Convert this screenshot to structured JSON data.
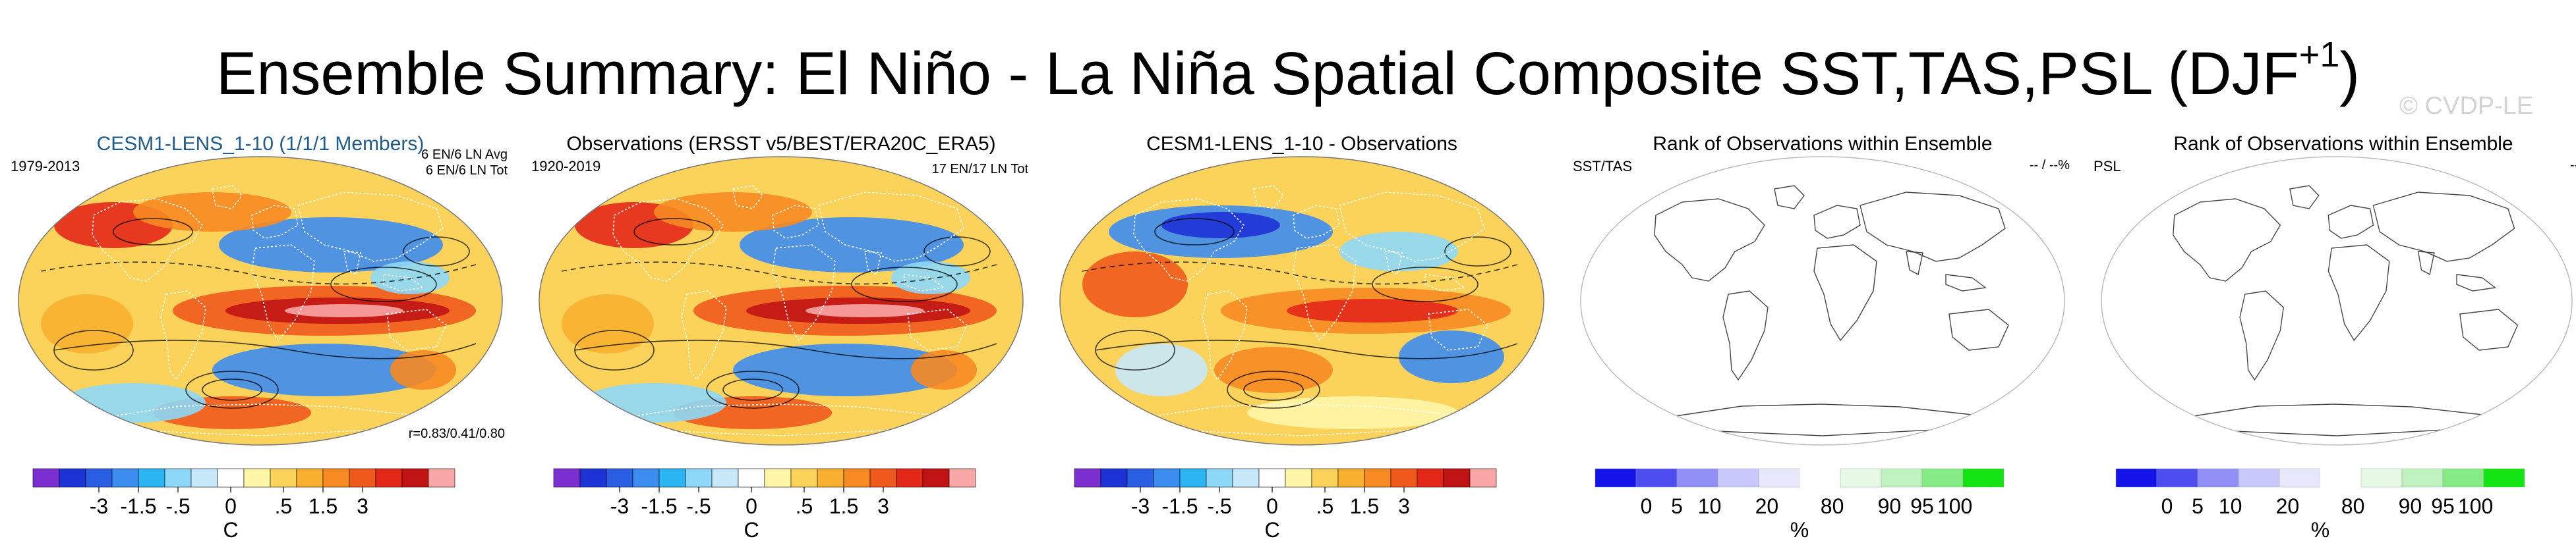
{
  "title_main": "Ensemble Summary: El Niño - La Niña Spatial Composite SST,TAS,PSL (DJF",
  "title_sup": "+1",
  "title_close": ")",
  "watermark": "© CVDP-LE",
  "colors": {
    "diverging": [
      "#7b2fd0",
      "#1e33d6",
      "#2a5fe3",
      "#3d8cf0",
      "#2bb5f2",
      "#8dd8f8",
      "#c6e8f9",
      "#ffffff",
      "#fff6a8",
      "#fbd25a",
      "#f9b030",
      "#f78a22",
      "#ef5a1c",
      "#e3281a",
      "#c01414",
      "#f9a6a6"
    ],
    "rank": [
      "#1414e8",
      "#4d4df0",
      "#8f8ff5",
      "#c8c8fa",
      "#e8e8fd",
      "#ffffff",
      "#e5f9e5",
      "#bff2bf",
      "#86eb86",
      "#14e314"
    ],
    "coast": "#555555",
    "title_blue": "#1f5c8c"
  },
  "panels": [
    {
      "title": "CESM1-LENS_1-10 (1/1/1 Members)",
      "top_left": "1979-2013",
      "top_right_1": "6 EN/6 LN Avg",
      "top_right_2": "6 EN/6 LN Tot",
      "bottom_right": "r=0.83/0.41/0.80",
      "unit": "C"
    },
    {
      "title": "Observations (ERSST v5/BEST/ERA20C_ERA5)",
      "top_left": "1920-2019",
      "top_right_1": "17 EN/17 LN Tot",
      "unit": "C"
    },
    {
      "title": "CESM1-LENS_1-10 - Observations",
      "unit": "C"
    },
    {
      "title": "Rank of Observations within Ensemble",
      "top_left": "SST/TAS",
      "top_right_1": "-- / --%",
      "unit": "%"
    },
    {
      "title": "Rank of Observations within Ensemble",
      "top_left": "PSL",
      "top_right_1": "--%",
      "unit": "%"
    }
  ],
  "chart_data": [
    {
      "type": "heatmap",
      "title": "CESM1-LENS_1-10 (1/1/1 Members)",
      "colorbar_ticks": [
        "-3",
        "-1.5",
        "-.5",
        "0",
        ".5",
        "1.5",
        "3"
      ],
      "colorbar_unit": "C"
    },
    {
      "type": "heatmap",
      "title": "Observations (ERSST v5/BEST/ERA20C_ERA5)",
      "colorbar_ticks": [
        "-3",
        "-1.5",
        "-.5",
        "0",
        ".5",
        "1.5",
        "3"
      ],
      "colorbar_unit": "C"
    },
    {
      "type": "heatmap",
      "title": "CESM1-LENS_1-10 - Observations",
      "colorbar_ticks": [
        "-3",
        "-1.5",
        "-.5",
        "0",
        ".5",
        "1.5",
        "3"
      ],
      "colorbar_unit": "C"
    },
    {
      "type": "heatmap",
      "title": "Rank of Observations within Ensemble",
      "colorbar_ticks": [
        "0",
        "5",
        "10",
        "20",
        "80",
        "90",
        "95",
        "100"
      ],
      "colorbar_unit": "%"
    },
    {
      "type": "heatmap",
      "title": "Rank of Observations within Ensemble",
      "colorbar_ticks": [
        "0",
        "5",
        "10",
        "20",
        "80",
        "90",
        "95",
        "100"
      ],
      "colorbar_unit": "%"
    }
  ]
}
